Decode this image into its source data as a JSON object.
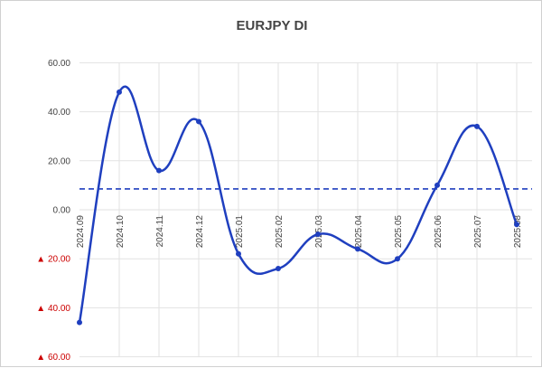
{
  "chart_data": {
    "type": "line",
    "title": "EURJPY DI",
    "categories": [
      "2024.09",
      "2024.10",
      "2024.11",
      "2024.12",
      "2025.01",
      "2025.02",
      "2025.03",
      "2025.04",
      "2025.05",
      "2025.06",
      "2025.07",
      "2025.08"
    ],
    "series": [
      {
        "values": [
          -46,
          48,
          16,
          36,
          -18,
          -24,
          -10,
          -16,
          -20,
          10,
          34,
          -6
        ]
      }
    ],
    "reference_line": {
      "value": 8.5,
      "style": "dashed"
    },
    "y_ticks": [
      {
        "value": 60,
        "label": "60.00",
        "negative": false
      },
      {
        "value": 40,
        "label": "40.00",
        "negative": false
      },
      {
        "value": 20,
        "label": "20.00",
        "negative": false
      },
      {
        "value": 0,
        "label": "0.00",
        "negative": false
      },
      {
        "value": -20,
        "label": "20.00",
        "negative": true
      },
      {
        "value": -40,
        "label": "40.00",
        "negative": true
      },
      {
        "value": -60,
        "label": "60.00",
        "negative": true
      }
    ],
    "negative_marker": "▲",
    "ylim": [
      -60,
      60
    ],
    "grid": true,
    "colors": {
      "line": "#1f3fbf",
      "reference": "#1f3fbf",
      "negative_labels": "#cc0000",
      "grid": "#e2e2e2"
    }
  }
}
